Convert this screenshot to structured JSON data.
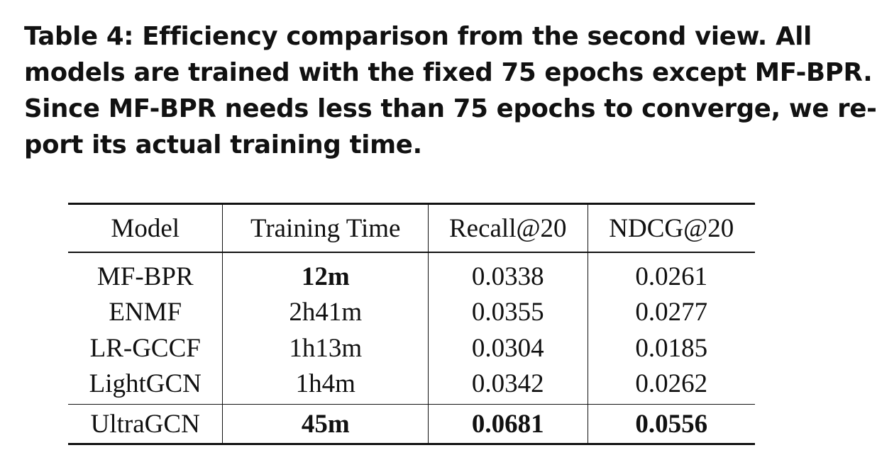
{
  "caption": {
    "lines": [
      "Table 4: Efficiency comparison from the second view. All",
      "models are trained with the fixed 75 epochs except MF-BPR.",
      "Since MF-BPR needs less than 75 epochs to converge, we re-",
      "port its actual training time."
    ]
  },
  "table": {
    "headers": [
      "Model",
      "Training Time",
      "Recall@20",
      "NDCG@20"
    ],
    "rows": [
      {
        "model": "MF-BPR",
        "time": "12m",
        "recall": "0.0338",
        "ndcg": "0.0261"
      },
      {
        "model": "ENMF",
        "time": "2h41m",
        "recall": "0.0355",
        "ndcg": "0.0277"
      },
      {
        "model": "LR-GCCF",
        "time": "1h13m",
        "recall": "0.0304",
        "ndcg": "0.0185"
      },
      {
        "model": "LightGCN",
        "time": "1h4m",
        "recall": "0.0342",
        "ndcg": "0.0262"
      },
      {
        "model": "UltraGCN",
        "time": "45m",
        "recall": "0.0681",
        "ndcg": "0.0556"
      }
    ]
  }
}
